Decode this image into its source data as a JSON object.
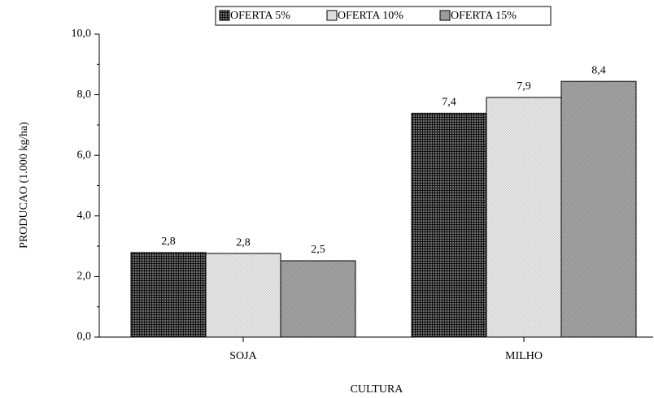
{
  "chart_data": {
    "type": "bar",
    "xlabel": "CULTURA",
    "ylabel": "PRODUCAO (1.000 kg/ha)",
    "categories": [
      "SOJA",
      "MILHO"
    ],
    "series": [
      {
        "name": "OFERTA 5%",
        "color": "#6e6e6e",
        "values": [
          2.79,
          7.39
        ],
        "value_labels": [
          "2,8",
          "7,4"
        ]
      },
      {
        "name": "OFERTA 10%",
        "color": "#f2f2f2",
        "values": [
          2.76,
          7.91
        ],
        "value_labels": [
          "2,8",
          "7,9"
        ]
      },
      {
        "name": "OFERTA 15%",
        "color": "#b4b4b4",
        "values": [
          2.52,
          8.44
        ],
        "value_labels": [
          "2,5",
          "8,4"
        ]
      }
    ],
    "ylim": [
      0,
      10
    ],
    "yticks": [
      {
        "value": 0,
        "label": "0,0"
      },
      {
        "value": 2,
        "label": "2,0"
      },
      {
        "value": 4,
        "label": "4,0"
      },
      {
        "value": 6,
        "label": "6,0"
      },
      {
        "value": 8,
        "label": "8,0"
      },
      {
        "value": 10,
        "label": "10,0"
      }
    ],
    "legend": "top"
  }
}
